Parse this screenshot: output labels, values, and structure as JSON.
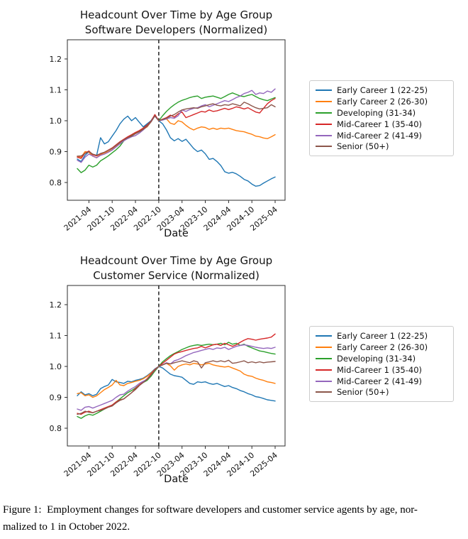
{
  "figure": {
    "caption_line1": "Figure 1:  Employment changes for software developers and customer service agents by age, nor-",
    "caption_line2": "malized to 1 in October 2022."
  },
  "chart_data": {
    "type": "line",
    "x_label": "Date",
    "y_ticks": [
      0.8,
      0.9,
      1.0,
      1.1,
      1.2
    ],
    "ylim": [
      0.7425,
      1.262
    ],
    "xlim_index": [
      -2.55,
      53.55
    ],
    "grid": false,
    "legend_position": "right-of-plot",
    "reference_line_month": "2022-10",
    "reference_line_style": "black dashed vertical",
    "months": [
      "2021-01",
      "2021-02",
      "2021-03",
      "2021-04",
      "2021-05",
      "2021-06",
      "2021-07",
      "2021-08",
      "2021-09",
      "2021-10",
      "2021-11",
      "2021-12",
      "2022-01",
      "2022-02",
      "2022-03",
      "2022-04",
      "2022-05",
      "2022-06",
      "2022-07",
      "2022-08",
      "2022-09",
      "2022-10",
      "2022-11",
      "2022-12",
      "2023-01",
      "2023-02",
      "2023-03",
      "2023-04",
      "2023-05",
      "2023-06",
      "2023-07",
      "2023-08",
      "2023-09",
      "2023-10",
      "2023-11",
      "2023-12",
      "2024-01",
      "2024-02",
      "2024-03",
      "2024-04",
      "2024-05",
      "2024-06",
      "2024-07",
      "2024-08",
      "2024-09",
      "2024-10",
      "2024-11",
      "2024-12",
      "2025-01",
      "2025-02",
      "2025-03",
      "2025-04"
    ],
    "x_tick_labels": [
      "2021-04",
      "2021-10",
      "2022-04",
      "2022-10",
      "2023-04",
      "2023-10",
      "2024-04",
      "2024-10",
      "2025-04"
    ],
    "x_tick_month_indices": [
      3,
      9,
      15,
      21,
      27,
      33,
      39,
      45,
      51
    ],
    "legend": [
      {
        "id": "early-career-1",
        "label": "Early Career 1 (22-25)",
        "color": "#1f77b4"
      },
      {
        "id": "early-career-2",
        "label": "Early Career 2 (26-30)",
        "color": "#ff7f0e"
      },
      {
        "id": "developing",
        "label": "Developing (31-34)",
        "color": "#2ca02c"
      },
      {
        "id": "mid-career-1",
        "label": "Mid-Career 1 (35-40)",
        "color": "#d62728"
      },
      {
        "id": "mid-career-2",
        "label": "Mid-Career 2 (41-49)",
        "color": "#9467bd"
      },
      {
        "id": "senior",
        "label": "Senior (50+)",
        "color": "#8c564b"
      }
    ],
    "charts": [
      {
        "id": "software-developers",
        "title_line1": "Headcount Over Time by Age Group",
        "title_line2": "Software Developers (Normalized)",
        "series": {
          "early-career-1": [
            0.876,
            0.868,
            0.888,
            0.9,
            0.89,
            0.888,
            0.945,
            0.925,
            0.932,
            0.95,
            0.968,
            0.99,
            1.005,
            1.015,
            1.0,
            1.01,
            0.995,
            0.98,
            0.99,
            1.0,
            1.018,
            1.0,
            0.99,
            0.97,
            0.945,
            0.935,
            0.942,
            0.933,
            0.94,
            0.925,
            0.91,
            0.9,
            0.905,
            0.893,
            0.875,
            0.878,
            0.868,
            0.855,
            0.835,
            0.83,
            0.833,
            0.828,
            0.82,
            0.81,
            0.805,
            0.795,
            0.788,
            0.79,
            0.798,
            0.805,
            0.812,
            0.818
          ],
          "early-career-2": [
            0.885,
            0.882,
            0.9,
            0.898,
            0.885,
            0.88,
            0.89,
            0.896,
            0.9,
            0.906,
            0.916,
            0.928,
            0.938,
            0.946,
            0.952,
            0.96,
            0.966,
            0.972,
            0.98,
            0.996,
            1.018,
            1.0,
            1.004,
            1.006,
            0.992,
            0.988,
            1.0,
            0.996,
            0.985,
            0.976,
            0.97,
            0.976,
            0.98,
            0.978,
            0.972,
            0.976,
            0.972,
            0.976,
            0.974,
            0.976,
            0.972,
            0.968,
            0.966,
            0.964,
            0.96,
            0.956,
            0.95,
            0.948,
            0.944,
            0.942,
            0.948,
            0.955
          ],
          "developing": [
            0.845,
            0.832,
            0.84,
            0.856,
            0.85,
            0.856,
            0.87,
            0.878,
            0.886,
            0.896,
            0.906,
            0.918,
            0.935,
            0.944,
            0.952,
            0.958,
            0.966,
            0.976,
            0.986,
            0.998,
            1.015,
            1.0,
            1.016,
            1.03,
            1.042,
            1.052,
            1.06,
            1.066,
            1.07,
            1.075,
            1.078,
            1.08,
            1.072,
            1.076,
            1.078,
            1.08,
            1.076,
            1.072,
            1.078,
            1.085,
            1.09,
            1.085,
            1.08,
            1.078,
            1.082,
            1.085,
            1.078,
            1.072,
            1.068,
            1.065,
            1.07,
            1.075
          ],
          "mid-career-1": [
            0.882,
            0.878,
            0.895,
            0.902,
            0.89,
            0.886,
            0.893,
            0.898,
            0.905,
            0.912,
            0.922,
            0.932,
            0.94,
            0.948,
            0.955,
            0.962,
            0.968,
            0.976,
            0.986,
            0.998,
            1.02,
            1.0,
            1.005,
            1.01,
            1.018,
            1.012,
            1.022,
            1.028,
            1.01,
            1.015,
            1.02,
            1.025,
            1.03,
            1.028,
            1.035,
            1.03,
            1.032,
            1.036,
            1.04,
            1.036,
            1.04,
            1.045,
            1.042,
            1.038,
            1.042,
            1.035,
            1.028,
            1.025,
            1.04,
            1.055,
            1.065,
            1.072
          ],
          "mid-career-2": [
            0.872,
            0.865,
            0.882,
            0.892,
            0.886,
            0.88,
            0.888,
            0.892,
            0.898,
            0.905,
            0.915,
            0.925,
            0.935,
            0.942,
            0.948,
            0.952,
            0.96,
            0.97,
            0.982,
            0.996,
            1.015,
            1.0,
            1.002,
            1.006,
            1.01,
            1.008,
            1.016,
            1.035,
            1.03,
            1.036,
            1.04,
            1.042,
            1.048,
            1.052,
            1.045,
            1.05,
            1.055,
            1.06,
            1.065,
            1.062,
            1.068,
            1.075,
            1.08,
            1.088,
            1.092,
            1.098,
            1.085,
            1.09,
            1.088,
            1.096,
            1.092,
            1.103
          ],
          "senior": [
            0.885,
            0.886,
            0.894,
            0.9,
            0.892,
            0.888,
            0.894,
            0.898,
            0.904,
            0.91,
            0.92,
            0.93,
            0.938,
            0.945,
            0.95,
            0.958,
            0.964,
            0.972,
            0.982,
            0.996,
            1.016,
            1.0,
            1.004,
            1.008,
            1.015,
            1.02,
            1.028,
            1.035,
            1.038,
            1.04,
            1.042,
            1.04,
            1.045,
            1.048,
            1.052,
            1.055,
            1.05,
            1.048,
            1.052,
            1.05,
            1.055,
            1.052,
            1.048,
            1.06,
            1.055,
            1.048,
            1.042,
            1.038,
            1.04,
            1.042,
            1.052,
            1.045
          ]
        }
      },
      {
        "id": "customer-service",
        "title_line1": "Headcount Over Time by Age Group",
        "title_line2": "Customer Service (Normalized)",
        "series": {
          "early-career-1": [
            0.905,
            0.918,
            0.908,
            0.912,
            0.905,
            0.91,
            0.928,
            0.935,
            0.94,
            0.958,
            0.95,
            0.948,
            0.945,
            0.952,
            0.95,
            0.955,
            0.958,
            0.962,
            0.97,
            0.98,
            0.992,
            1.0,
            0.995,
            0.985,
            0.975,
            0.97,
            0.968,
            0.965,
            0.955,
            0.945,
            0.942,
            0.95,
            0.948,
            0.95,
            0.945,
            0.942,
            0.945,
            0.94,
            0.935,
            0.938,
            0.932,
            0.928,
            0.922,
            0.918,
            0.912,
            0.908,
            0.902,
            0.9,
            0.896,
            0.892,
            0.89,
            0.888
          ],
          "early-career-2": [
            0.912,
            0.915,
            0.905,
            0.908,
            0.9,
            0.905,
            0.915,
            0.925,
            0.932,
            0.94,
            0.955,
            0.94,
            0.938,
            0.945,
            0.948,
            0.952,
            0.955,
            0.96,
            0.968,
            0.978,
            0.99,
            1.0,
            1.005,
            1.01,
            1.002,
            0.988,
            1.0,
            1.005,
            1.008,
            1.005,
            1.01,
            1.008,
            1.005,
            1.008,
            1.01,
            1.005,
            1.002,
            1.0,
            0.998,
            1.0,
            0.995,
            0.99,
            0.985,
            0.975,
            0.97,
            0.968,
            0.962,
            0.958,
            0.955,
            0.95,
            0.948,
            0.945
          ],
          "developing": [
            0.838,
            0.832,
            0.84,
            0.845,
            0.842,
            0.848,
            0.855,
            0.862,
            0.868,
            0.875,
            0.885,
            0.895,
            0.905,
            0.915,
            0.922,
            0.93,
            0.94,
            0.948,
            0.955,
            0.968,
            0.985,
            1.0,
            1.015,
            1.025,
            1.035,
            1.042,
            1.048,
            1.055,
            1.06,
            1.065,
            1.068,
            1.07,
            1.068,
            1.07,
            1.072,
            1.07,
            1.072,
            1.075,
            1.07,
            1.078,
            1.072,
            1.075,
            1.068,
            1.072,
            1.065,
            1.06,
            1.055,
            1.05,
            1.048,
            1.045,
            1.042,
            1.04
          ],
          "mid-career-1": [
            0.848,
            0.845,
            0.852,
            0.855,
            0.85,
            0.855,
            0.86,
            0.865,
            0.87,
            0.875,
            0.885,
            0.892,
            0.895,
            0.905,
            0.915,
            0.928,
            0.94,
            0.95,
            0.96,
            0.975,
            0.99,
            1.0,
            1.01,
            1.02,
            1.03,
            1.04,
            1.045,
            1.048,
            1.052,
            1.055,
            1.058,
            1.06,
            1.065,
            1.06,
            1.065,
            1.07,
            1.072,
            1.068,
            1.075,
            1.07,
            1.065,
            1.07,
            1.078,
            1.085,
            1.09,
            1.088,
            1.085,
            1.088,
            1.09,
            1.092,
            1.095,
            1.105
          ],
          "mid-career-2": [
            0.862,
            0.858,
            0.868,
            0.87,
            0.865,
            0.87,
            0.875,
            0.88,
            0.885,
            0.89,
            0.9,
            0.908,
            0.91,
            0.92,
            0.928,
            0.935,
            0.945,
            0.952,
            0.958,
            0.972,
            0.988,
            1.0,
            1.005,
            1.012,
            1.008,
            1.018,
            1.022,
            1.028,
            1.035,
            1.04,
            1.045,
            1.048,
            1.052,
            1.055,
            1.058,
            1.055,
            1.06,
            1.058,
            1.062,
            1.055,
            1.06,
            1.065,
            1.068,
            1.07,
            1.068,
            1.065,
            1.062,
            1.06,
            1.058,
            1.06,
            1.058,
            1.062
          ],
          "senior": [
            0.845,
            0.848,
            0.855,
            0.852,
            0.85,
            0.855,
            0.858,
            0.862,
            0.868,
            0.872,
            0.882,
            0.89,
            0.895,
            0.905,
            0.915,
            0.925,
            0.938,
            0.948,
            0.958,
            0.972,
            0.988,
            1.0,
            1.005,
            1.01,
            1.008,
            1.012,
            1.015,
            1.018,
            1.015,
            1.012,
            1.018,
            1.015,
            0.995,
            1.012,
            1.015,
            1.018,
            1.015,
            1.018,
            1.015,
            1.02,
            1.01,
            1.012,
            1.015,
            1.018,
            1.012,
            1.015,
            1.012,
            1.015,
            1.012,
            1.014,
            1.015,
            1.016
          ]
        }
      }
    ]
  }
}
